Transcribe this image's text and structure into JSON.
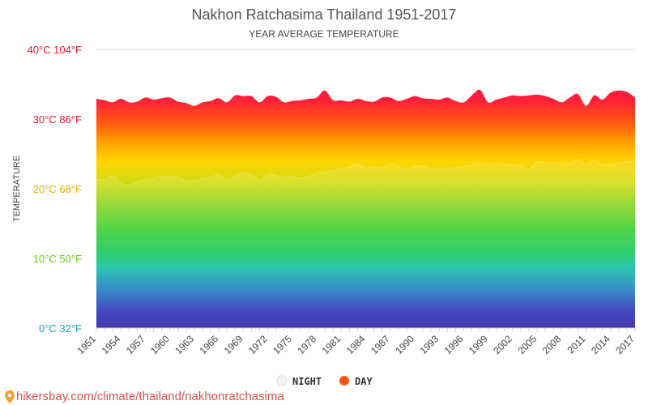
{
  "chart_data": {
    "type": "area",
    "title": "Nakhon Ratchasima Thailand 1951-2017",
    "subtitle": "YEAR AVERAGE TEMPERATURE",
    "ylabel": "TEMPERATURE",
    "xlabel": "",
    "ylim": [
      0,
      40
    ],
    "xlim": [
      1951,
      2017
    ],
    "y_ticks": [
      {
        "value": 40,
        "label": "40°C 104°F",
        "color": "#e8162f"
      },
      {
        "value": 30,
        "label": "30°C 86°F",
        "color": "#e8162f"
      },
      {
        "value": 20,
        "label": "20°C 68°F",
        "color": "#e0b000"
      },
      {
        "value": 10,
        "label": "10°C 50°F",
        "color": "#6ec91d"
      },
      {
        "value": 0,
        "label": "0°C 32°F",
        "color": "#1aa0c8"
      }
    ],
    "x_ticks": [
      "1951",
      "1954",
      "1957",
      "1960",
      "1963",
      "1966",
      "1969",
      "1972",
      "1975",
      "1978",
      "1981",
      "1984",
      "1987",
      "1990",
      "1993",
      "1996",
      "1999",
      "2002",
      "2005",
      "2008",
      "2011",
      "2014",
      "2017"
    ],
    "grid": true,
    "legend_position": "bottom",
    "series": [
      {
        "name": "NIGHT",
        "color": "#dddddd",
        "x": [
          1951,
          1952,
          1953,
          1954,
          1955,
          1956,
          1957,
          1958,
          1959,
          1960,
          1961,
          1962,
          1963,
          1964,
          1965,
          1966,
          1967,
          1968,
          1969,
          1970,
          1971,
          1972,
          1973,
          1974,
          1975,
          1976,
          1977,
          1978,
          1979,
          1980,
          1981,
          1982,
          1983,
          1984,
          1985,
          1986,
          1987,
          1988,
          1989,
          1990,
          1991,
          1992,
          1993,
          1994,
          1995,
          1996,
          1997,
          1998,
          1999,
          2000,
          2001,
          2002,
          2003,
          2004,
          2005,
          2006,
          2007,
          2008,
          2009,
          2010,
          2011,
          2012,
          2013,
          2014,
          2015,
          2016,
          2017
        ],
        "values": [
          21.4,
          21.3,
          21.9,
          20.8,
          20.6,
          20.9,
          21.3,
          21.5,
          21.8,
          21.7,
          21.7,
          21.2,
          21.2,
          21.5,
          21.6,
          22.1,
          21.3,
          21.8,
          22.3,
          22.0,
          21.2,
          22.1,
          21.9,
          21.6,
          21.8,
          21.5,
          21.8,
          22.2,
          22.4,
          22.6,
          22.9,
          23.1,
          23.6,
          23.0,
          23.2,
          23.0,
          23.5,
          23.2,
          22.8,
          23.2,
          23.3,
          22.9,
          22.9,
          23.0,
          23.0,
          23.2,
          23.4,
          23.7,
          23.5,
          23.6,
          23.5,
          23.5,
          23.3,
          22.8,
          23.9,
          23.7,
          23.8,
          23.6,
          23.7,
          24.2,
          23.5,
          24.1,
          23.5,
          23.5,
          23.7,
          23.9,
          24.0
        ]
      },
      {
        "name": "DAY",
        "color": "#ff5511",
        "x": [
          1951,
          1952,
          1953,
          1954,
          1955,
          1956,
          1957,
          1958,
          1959,
          1960,
          1961,
          1962,
          1963,
          1964,
          1965,
          1966,
          1967,
          1968,
          1969,
          1970,
          1971,
          1972,
          1973,
          1974,
          1975,
          1976,
          1977,
          1978,
          1979,
          1980,
          1981,
          1982,
          1983,
          1984,
          1985,
          1986,
          1987,
          1988,
          1989,
          1990,
          1991,
          1992,
          1993,
          1994,
          1995,
          1996,
          1997,
          1998,
          1999,
          2000,
          2001,
          2002,
          2003,
          2004,
          2005,
          2006,
          2007,
          2008,
          2009,
          2010,
          2011,
          2012,
          2013,
          2014,
          2015,
          2016,
          2017
        ],
        "values": [
          32.9,
          32.7,
          32.4,
          32.9,
          32.4,
          32.5,
          33.1,
          32.8,
          33.0,
          33.1,
          32.5,
          32.3,
          31.9,
          32.4,
          32.6,
          33.0,
          32.4,
          33.4,
          33.3,
          33.3,
          32.4,
          33.3,
          33.2,
          32.4,
          32.6,
          32.7,
          32.9,
          33.1,
          34.1,
          32.7,
          32.7,
          32.5,
          32.9,
          32.6,
          32.5,
          33.1,
          33.1,
          32.6,
          32.9,
          33.3,
          33.0,
          32.9,
          32.8,
          33.1,
          32.6,
          32.4,
          33.4,
          34.2,
          32.4,
          32.8,
          33.1,
          33.4,
          33.3,
          33.4,
          33.5,
          33.3,
          32.9,
          32.4,
          33.1,
          33.6,
          31.9,
          33.4,
          32.8,
          33.8,
          34.1,
          33.9,
          33.1
        ]
      }
    ]
  },
  "legend": {
    "night_label": "NIGHT",
    "day_label": "DAY"
  },
  "source": {
    "text": "hikersbay.com/climate/thailand/nakhonratchasima"
  }
}
